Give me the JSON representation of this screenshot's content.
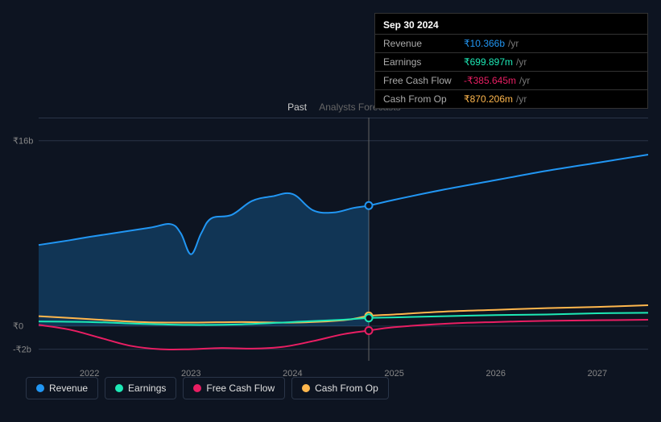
{
  "tooltip": {
    "date": "Sep 30 2024",
    "unit": "/yr",
    "rows": [
      {
        "label": "Revenue",
        "value": "₹10.366b",
        "color": "#2196f3"
      },
      {
        "label": "Earnings",
        "value": "₹699.897m",
        "color": "#1de9b6"
      },
      {
        "label": "Free Cash Flow",
        "value": "-₹385.645m",
        "color": "#e91e63"
      },
      {
        "label": "Cash From Op",
        "value": "₹870.206m",
        "color": "#ffb74d"
      }
    ]
  },
  "sections": {
    "past": "Past",
    "forecast": "Analysts Forecasts"
  },
  "y_axis": {
    "labels": [
      {
        "text": "₹16b",
        "value": 16
      },
      {
        "text": "₹0",
        "value": 0
      },
      {
        "text": "-₹2b",
        "value": -2
      }
    ],
    "min": -3,
    "max": 18
  },
  "x_axis": {
    "min": 2021.5,
    "max": 2027.5,
    "ticks": [
      2022,
      2023,
      2024,
      2025,
      2026,
      2027
    ],
    "vline_at": 2024.75
  },
  "series": [
    {
      "name": "Revenue",
      "color": "#2196f3",
      "area_past": true,
      "points": [
        [
          2021.5,
          7.0
        ],
        [
          2021.8,
          7.4
        ],
        [
          2022.0,
          7.7
        ],
        [
          2022.3,
          8.1
        ],
        [
          2022.6,
          8.5
        ],
        [
          2022.8,
          8.8
        ],
        [
          2022.9,
          8.0
        ],
        [
          2023.0,
          6.2
        ],
        [
          2023.1,
          8.0
        ],
        [
          2023.2,
          9.3
        ],
        [
          2023.4,
          9.6
        ],
        [
          2023.6,
          10.8
        ],
        [
          2023.8,
          11.2
        ],
        [
          2024.0,
          11.4
        ],
        [
          2024.2,
          10.0
        ],
        [
          2024.4,
          9.8
        ],
        [
          2024.6,
          10.2
        ],
        [
          2024.75,
          10.4
        ],
        [
          2025.0,
          10.9
        ],
        [
          2025.5,
          11.8
        ],
        [
          2026.0,
          12.6
        ],
        [
          2026.5,
          13.4
        ],
        [
          2027.0,
          14.1
        ],
        [
          2027.5,
          14.8
        ]
      ]
    },
    {
      "name": "Cash From Op",
      "color": "#ffb74d",
      "area_past": false,
      "points": [
        [
          2021.5,
          0.85
        ],
        [
          2022.0,
          0.6
        ],
        [
          2022.5,
          0.35
        ],
        [
          2023.0,
          0.3
        ],
        [
          2023.5,
          0.35
        ],
        [
          2024.0,
          0.3
        ],
        [
          2024.5,
          0.5
        ],
        [
          2024.75,
          0.87
        ],
        [
          2025.0,
          1.0
        ],
        [
          2025.5,
          1.25
        ],
        [
          2026.0,
          1.4
        ],
        [
          2026.5,
          1.55
        ],
        [
          2027.0,
          1.65
        ],
        [
          2027.5,
          1.8
        ]
      ]
    },
    {
      "name": "Earnings",
      "color": "#1de9b6",
      "area_past": false,
      "points": [
        [
          2021.5,
          0.4
        ],
        [
          2022.0,
          0.35
        ],
        [
          2022.5,
          0.2
        ],
        [
          2023.0,
          0.1
        ],
        [
          2023.5,
          0.15
        ],
        [
          2024.0,
          0.35
        ],
        [
          2024.5,
          0.55
        ],
        [
          2024.75,
          0.7
        ],
        [
          2025.0,
          0.75
        ],
        [
          2025.5,
          0.85
        ],
        [
          2026.0,
          0.95
        ],
        [
          2026.5,
          1.0
        ],
        [
          2027.0,
          1.1
        ],
        [
          2027.5,
          1.15
        ]
      ]
    },
    {
      "name": "Free Cash Flow",
      "color": "#e91e63",
      "area_past": false,
      "points": [
        [
          2021.5,
          0.1
        ],
        [
          2021.8,
          -0.3
        ],
        [
          2022.1,
          -1.0
        ],
        [
          2022.4,
          -1.7
        ],
        [
          2022.7,
          -2.0
        ],
        [
          2023.0,
          -2.0
        ],
        [
          2023.3,
          -1.9
        ],
        [
          2023.6,
          -1.95
        ],
        [
          2023.9,
          -1.8
        ],
        [
          2024.2,
          -1.3
        ],
        [
          2024.5,
          -0.7
        ],
        [
          2024.75,
          -0.39
        ],
        [
          2025.0,
          -0.1
        ],
        [
          2025.5,
          0.2
        ],
        [
          2026.0,
          0.35
        ],
        [
          2026.5,
          0.45
        ],
        [
          2027.0,
          0.5
        ],
        [
          2027.5,
          0.55
        ]
      ]
    }
  ],
  "markers_at_x": 2024.75,
  "legend": [
    {
      "label": "Revenue",
      "color": "#2196f3"
    },
    {
      "label": "Earnings",
      "color": "#1de9b6"
    },
    {
      "label": "Free Cash Flow",
      "color": "#e91e63"
    },
    {
      "label": "Cash From Op",
      "color": "#ffb74d"
    }
  ]
}
